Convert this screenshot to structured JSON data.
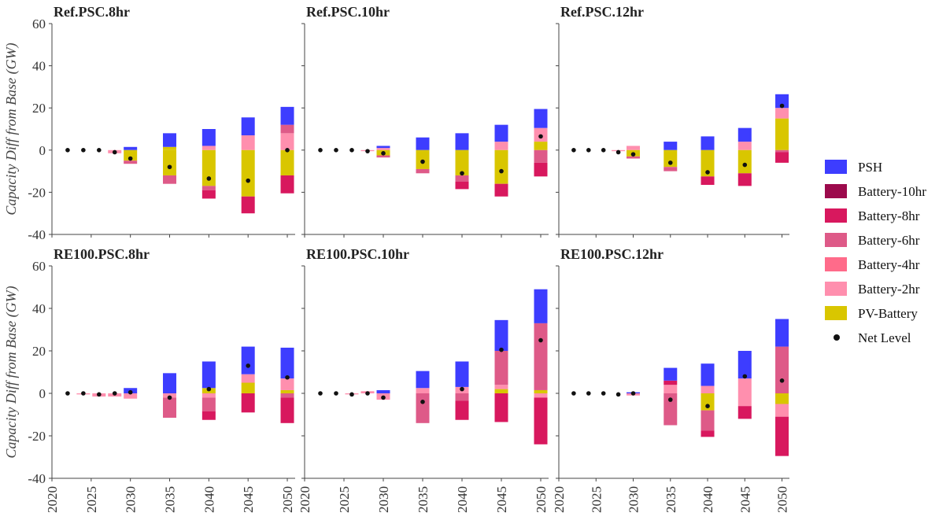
{
  "chart_data": {
    "type": "bar",
    "stacked": true,
    "ylabel": "Capacity Diff from Base (GW)",
    "ylim": [
      -40,
      60
    ],
    "yticks": [
      -40,
      -20,
      0,
      20,
      40,
      60
    ],
    "xticks": [
      2020,
      2025,
      2030,
      2035,
      2040,
      2045,
      2050
    ],
    "x": [
      2022,
      2024,
      2026,
      2028,
      2030,
      2035,
      2040,
      2045,
      2050
    ],
    "legend_position": "right",
    "legend": [
      {
        "name": "PSH",
        "color": "#3d3dff",
        "kind": "bar"
      },
      {
        "name": "Battery-10hr",
        "color": "#9c0a4c",
        "kind": "bar"
      },
      {
        "name": "Battery-8hr",
        "color": "#d8185e",
        "kind": "bar"
      },
      {
        "name": "Battery-6hr",
        "color": "#de5a88",
        "kind": "bar"
      },
      {
        "name": "Battery-4hr",
        "color": "#ff6b8a",
        "kind": "bar"
      },
      {
        "name": "Battery-2hr",
        "color": "#ff8fae",
        "kind": "bar"
      },
      {
        "name": "PV-Battery",
        "color": "#d9c600",
        "kind": "bar"
      },
      {
        "name": "Net Level",
        "color": "#111111",
        "kind": "dot"
      }
    ],
    "panels": [
      {
        "title": "Ref.PSC.8hr",
        "stacks": [
          [],
          [],
          [],
          [
            {
              "s": "Battery-2hr",
              "v": -1.5
            }
          ],
          [
            {
              "s": "PSH",
              "v": 1.5
            },
            {
              "s": "PV-Battery",
              "v": -5
            },
            {
              "s": "Battery-6hr",
              "v": -1.5
            }
          ],
          [
            {
              "s": "PV-Battery",
              "v": 1.5
            },
            {
              "s": "PSH",
              "v": 6.5
            },
            {
              "s": "PV-Battery",
              "v": -12
            },
            {
              "s": "Battery-6hr",
              "v": -4
            }
          ],
          [
            {
              "s": "Battery-2hr",
              "v": 2
            },
            {
              "s": "PSH",
              "v": 8
            },
            {
              "s": "PV-Battery",
              "v": -17
            },
            {
              "s": "Battery-6hr",
              "v": -2
            },
            {
              "s": "Battery-8hr",
              "v": -4
            }
          ],
          [
            {
              "s": "Battery-2hr",
              "v": 7
            },
            {
              "s": "PSH",
              "v": 8.5
            },
            {
              "s": "PV-Battery",
              "v": -22
            },
            {
              "s": "Battery-8hr",
              "v": -8
            }
          ],
          [
            {
              "s": "Battery-2hr",
              "v": 8
            },
            {
              "s": "Battery-6hr",
              "v": 4
            },
            {
              "s": "PSH",
              "v": 8.5
            },
            {
              "s": "PV-Battery",
              "v": -12
            },
            {
              "s": "Battery-8hr",
              "v": -8.5
            }
          ]
        ],
        "net": [
          0,
          0,
          0,
          -1,
          -4,
          -8,
          -13.5,
          -14.5,
          0
        ]
      },
      {
        "title": "Ref.PSC.10hr",
        "stacks": [
          [],
          [],
          [],
          [
            {
              "s": "Battery-2hr",
              "v": -0.5
            }
          ],
          [
            {
              "s": "Battery-2hr",
              "v": 1
            },
            {
              "s": "PSH",
              "v": 1
            },
            {
              "s": "PV-Battery",
              "v": -2.5
            },
            {
              "s": "Battery-6hr",
              "v": -1
            }
          ],
          [
            {
              "s": "PSH",
              "v": 6
            },
            {
              "s": "PV-Battery",
              "v": -9
            },
            {
              "s": "Battery-6hr",
              "v": -2
            }
          ],
          [
            {
              "s": "PSH",
              "v": 8
            },
            {
              "s": "PV-Battery",
              "v": -12
            },
            {
              "s": "Battery-6hr",
              "v": -3
            },
            {
              "s": "Battery-8hr",
              "v": -3.5
            }
          ],
          [
            {
              "s": "Battery-2hr",
              "v": 4
            },
            {
              "s": "PSH",
              "v": 8
            },
            {
              "s": "PV-Battery",
              "v": -16
            },
            {
              "s": "Battery-8hr",
              "v": -6
            }
          ],
          [
            {
              "s": "PV-Battery",
              "v": 4
            },
            {
              "s": "Battery-2hr",
              "v": 6.5
            },
            {
              "s": "PSH",
              "v": 9
            },
            {
              "s": "Battery-6hr",
              "v": -6
            },
            {
              "s": "Battery-8hr",
              "v": -6.5
            }
          ]
        ],
        "net": [
          0,
          0,
          0,
          -0.5,
          -1.5,
          -5.5,
          -11,
          -10,
          6.5
        ]
      },
      {
        "title": "Ref.PSC.12hr",
        "stacks": [
          [],
          [],
          [],
          [
            {
              "s": "Battery-2hr",
              "v": -0.5
            }
          ],
          [
            {
              "s": "Battery-2hr",
              "v": 2
            },
            {
              "s": "PV-Battery",
              "v": -3
            },
            {
              "s": "Battery-6hr",
              "v": -1
            }
          ],
          [
            {
              "s": "PSH",
              "v": 4
            },
            {
              "s": "PV-Battery",
              "v": -8
            },
            {
              "s": "Battery-6hr",
              "v": -2
            }
          ],
          [
            {
              "s": "PSH",
              "v": 6.5
            },
            {
              "s": "PV-Battery",
              "v": -12.5
            },
            {
              "s": "Battery-8hr",
              "v": -4
            }
          ],
          [
            {
              "s": "Battery-2hr",
              "v": 4
            },
            {
              "s": "PSH",
              "v": 6.5
            },
            {
              "s": "PV-Battery",
              "v": -11
            },
            {
              "s": "Battery-8hr",
              "v": -6
            }
          ],
          [
            {
              "s": "PV-Battery",
              "v": 15
            },
            {
              "s": "Battery-2hr",
              "v": 5
            },
            {
              "s": "PSH",
              "v": 6.5
            },
            {
              "s": "Battery-6hr",
              "v": -1
            },
            {
              "s": "Battery-8hr",
              "v": -5
            }
          ]
        ],
        "net": [
          0,
          0,
          0,
          -1,
          -2,
          -6,
          -10.5,
          -7,
          21
        ]
      },
      {
        "title": "RE100.PSC.8hr",
        "stacks": [
          [],
          [
            {
              "s": "Battery-2hr",
              "v": -0.5
            }
          ],
          [
            {
              "s": "Battery-2hr",
              "v": -1.5
            }
          ],
          [
            {
              "s": "Battery-2hr",
              "v": -1.5
            }
          ],
          [
            {
              "s": "PSH",
              "v": 2.5
            },
            {
              "s": "Battery-2hr",
              "v": -2.5
            }
          ],
          [
            {
              "s": "PSH",
              "v": 9.5
            },
            {
              "s": "Battery-2hr",
              "v": -2
            },
            {
              "s": "Battery-6hr",
              "v": -9.5
            }
          ],
          [
            {
              "s": "PV-Battery",
              "v": 2.5
            },
            {
              "s": "PSH",
              "v": 12.5
            },
            {
              "s": "Battery-2hr",
              "v": -2
            },
            {
              "s": "Battery-6hr",
              "v": -6.5
            },
            {
              "s": "Battery-8hr",
              "v": -4
            }
          ],
          [
            {
              "s": "PV-Battery",
              "v": 5
            },
            {
              "s": "Battery-2hr",
              "v": 4
            },
            {
              "s": "PSH",
              "v": 13
            },
            {
              "s": "Battery-8hr",
              "v": -9
            }
          ],
          [
            {
              "s": "PV-Battery",
              "v": 1.5
            },
            {
              "s": "Battery-2hr",
              "v": 5.5
            },
            {
              "s": "PSH",
              "v": 14.5
            },
            {
              "s": "Battery-6hr",
              "v": -2
            },
            {
              "s": "Battery-8hr",
              "v": -12
            }
          ]
        ],
        "net": [
          0,
          0,
          -0.5,
          0,
          0.5,
          -2,
          2,
          13,
          7.5
        ]
      },
      {
        "title": "RE100.PSC.10hr",
        "stacks": [
          [],
          [],
          [
            {
              "s": "Battery-2hr",
              "v": -0.5
            }
          ],
          [
            {
              "s": "Battery-2hr",
              "v": 1
            }
          ],
          [
            {
              "s": "PSH",
              "v": 1.5
            },
            {
              "s": "Battery-2hr",
              "v": -3
            }
          ],
          [
            {
              "s": "Battery-2hr",
              "v": 2.5
            },
            {
              "s": "PSH",
              "v": 8
            },
            {
              "s": "Battery-6hr",
              "v": -14
            }
          ],
          [
            {
              "s": "Battery-2hr",
              "v": 3
            },
            {
              "s": "PSH",
              "v": 12
            },
            {
              "s": "Battery-6hr",
              "v": -3.5
            },
            {
              "s": "Battery-8hr",
              "v": -9
            }
          ],
          [
            {
              "s": "PV-Battery",
              "v": 2
            },
            {
              "s": "Battery-2hr",
              "v": 2
            },
            {
              "s": "Battery-6hr",
              "v": 16
            },
            {
              "s": "PSH",
              "v": 14.5
            },
            {
              "s": "Battery-8hr",
              "v": -13.5
            }
          ],
          [
            {
              "s": "PV-Battery",
              "v": 1.5
            },
            {
              "s": "Battery-6hr",
              "v": 31.5
            },
            {
              "s": "PSH",
              "v": 16
            },
            {
              "s": "Battery-2hr",
              "v": -2
            },
            {
              "s": "Battery-8hr",
              "v": -22
            }
          ]
        ],
        "net": [
          0,
          0,
          -0.5,
          0,
          -2,
          -4,
          2,
          20.5,
          25
        ]
      },
      {
        "title": "RE100.PSC.12hr",
        "stacks": [
          [],
          [],
          [],
          [],
          [
            {
              "s": "PSH",
              "v": 0.5
            },
            {
              "s": "Battery-2hr",
              "v": -1
            }
          ],
          [
            {
              "s": "Battery-2hr",
              "v": 4
            },
            {
              "s": "Battery-8hr",
              "v": 2
            },
            {
              "s": "PSH",
              "v": 6
            },
            {
              "s": "Battery-6hr",
              "v": -15
            }
          ],
          [
            {
              "s": "Battery-2hr",
              "v": 3.5
            },
            {
              "s": "PSH",
              "v": 10.5
            },
            {
              "s": "PV-Battery",
              "v": -8
            },
            {
              "s": "Battery-6hr",
              "v": -9.5
            },
            {
              "s": "Battery-8hr",
              "v": -3
            }
          ],
          [
            {
              "s": "Battery-2hr",
              "v": 7
            },
            {
              "s": "PSH",
              "v": 13
            },
            {
              "s": "Battery-2hr",
              "v": -6
            },
            {
              "s": "Battery-8hr",
              "v": -6
            }
          ],
          [
            {
              "s": "Battery-6hr",
              "v": 22
            },
            {
              "s": "PSH",
              "v": 13
            },
            {
              "s": "PV-Battery",
              "v": -5
            },
            {
              "s": "Battery-2hr",
              "v": -6
            },
            {
              "s": "Battery-8hr",
              "v": -18.5
            }
          ]
        ],
        "net": [
          0,
          0,
          0,
          -0.5,
          0,
          -3,
          -6,
          8,
          6
        ]
      }
    ]
  }
}
